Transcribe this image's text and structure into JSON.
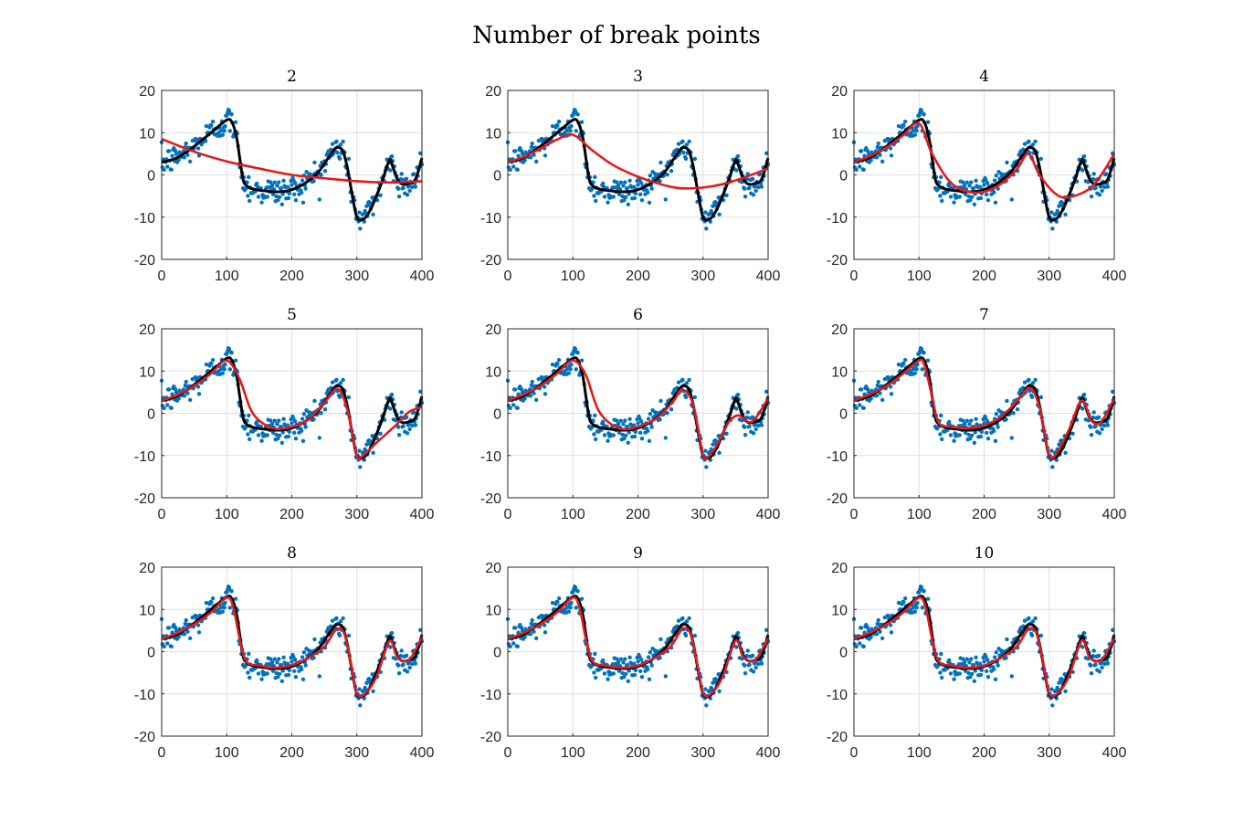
{
  "figure": {
    "title": "Number of break points"
  },
  "chart_data": {
    "type": "scatter",
    "layout": "3x3 small multiples",
    "xlim": [
      0,
      400
    ],
    "ylim": [
      -20,
      20
    ],
    "xticks": [
      0,
      100,
      200,
      300,
      400
    ],
    "yticks": [
      -20,
      -10,
      0,
      10,
      20
    ],
    "grid": true,
    "colors": {
      "points": "#0072BD",
      "true_curve": "#000000",
      "fitted_curve": "#E41A1C"
    },
    "true_curve": {
      "x": [
        0,
        20,
        40,
        60,
        80,
        100,
        108,
        115,
        120,
        125,
        130,
        140,
        160,
        180,
        200,
        220,
        240,
        255,
        265,
        270,
        278,
        285,
        292,
        300,
        310,
        320,
        330,
        340,
        350,
        355,
        362,
        370,
        380,
        390,
        400
      ],
      "y": [
        3,
        3.8,
        5.6,
        8,
        10.5,
        13,
        12.5,
        9,
        4,
        -1,
        -2.5,
        -3.3,
        -3.8,
        -4,
        -3.5,
        -2,
        0.5,
        3.8,
        6,
        6.5,
        5.8,
        2,
        -4,
        -10,
        -10.5,
        -8.5,
        -5,
        -1,
        3.5,
        2,
        -1,
        -2.2,
        -2,
        -1,
        4
      ]
    },
    "panels": [
      {
        "title": "2",
        "fit": {
          "x": [
            0,
            50,
            100,
            150,
            200,
            250,
            300,
            350,
            400
          ],
          "y": [
            8.5,
            5.5,
            3.2,
            1.5,
            0,
            -0.8,
            -1.5,
            -1.8,
            -1.5
          ]
        }
      },
      {
        "title": "3",
        "fit": {
          "x": [
            0,
            25,
            50,
            75,
            100,
            130,
            160,
            190,
            220,
            250,
            270,
            300,
            330,
            360,
            400
          ],
          "y": [
            3,
            4.3,
            6.2,
            8.3,
            9.5,
            5.8,
            2.5,
            0.2,
            -1.5,
            -2.8,
            -3.2,
            -3,
            -2.2,
            -0.8,
            1.5
          ]
        }
      },
      {
        "title": "4",
        "fit": {
          "x": [
            0,
            25,
            50,
            75,
            100,
            120,
            150,
            185,
            220,
            250,
            268,
            285,
            310,
            330,
            360,
            380,
            400
          ],
          "y": [
            3,
            4.5,
            6.5,
            9.3,
            12.2,
            5,
            -2,
            -4.2,
            -2.7,
            1.3,
            5,
            0,
            -4.5,
            -5.3,
            -3.5,
            0,
            5
          ]
        }
      },
      {
        "title": "5",
        "fit": {
          "x": [
            0,
            25,
            50,
            75,
            100,
            120,
            140,
            170,
            200,
            225,
            250,
            270,
            285,
            300,
            308,
            330,
            360,
            380,
            400
          ],
          "y": [
            3,
            4.4,
            6.5,
            9.3,
            12.5,
            8,
            0,
            -3.5,
            -3.2,
            -1.5,
            2.5,
            5.8,
            1,
            -10,
            -10.2,
            -7,
            -2.8,
            0.3,
            1.5
          ]
        }
      },
      {
        "title": "6",
        "fit": {
          "x": [
            0,
            25,
            50,
            75,
            100,
            120,
            140,
            170,
            200,
            230,
            255,
            268,
            285,
            300,
            310,
            325,
            340,
            355,
            375,
            400
          ],
          "y": [
            3,
            4.5,
            6.5,
            9.3,
            12.5,
            9,
            0.5,
            -3.5,
            -3.2,
            -1,
            3,
            5.6,
            2,
            -9.8,
            -10,
            -6.5,
            -2,
            -0.5,
            -2,
            3.5
          ]
        }
      },
      {
        "title": "7",
        "fit": {
          "x": [
            0,
            25,
            50,
            75,
            100,
            108,
            120,
            130,
            150,
            175,
            200,
            225,
            250,
            270,
            285,
            300,
            312,
            330,
            350,
            365,
            380,
            400
          ],
          "y": [
            3,
            4.5,
            6.5,
            9.3,
            12.5,
            11.5,
            4,
            -2.2,
            -3.2,
            -3.5,
            -2.8,
            -1,
            2.8,
            6,
            1.5,
            -9.8,
            -9.3,
            -4,
            3,
            -1.8,
            -2,
            3.5
          ]
        }
      },
      {
        "title": "8",
        "fit": {
          "x": [
            0,
            25,
            50,
            75,
            100,
            110,
            120,
            130,
            150,
            175,
            200,
            225,
            250,
            268,
            280,
            290,
            300,
            312,
            330,
            350,
            362,
            380,
            400
          ],
          "y": [
            3,
            4.5,
            6.5,
            9.2,
            12.8,
            10.5,
            3,
            -2.3,
            -3.3,
            -3.8,
            -3.2,
            -1.5,
            1.2,
            5.2,
            4.5,
            -2,
            -9.8,
            -10,
            -6,
            2.5,
            -1.2,
            -2,
            3.5
          ]
        }
      },
      {
        "title": "9",
        "fit": {
          "x": [
            0,
            25,
            50,
            75,
            100,
            110,
            120,
            130,
            150,
            175,
            200,
            225,
            250,
            268,
            280,
            290,
            300,
            312,
            330,
            350,
            362,
            380,
            400
          ],
          "y": [
            3,
            4.5,
            6.5,
            9.2,
            12.8,
            10.5,
            3,
            -2.3,
            -3.3,
            -3.8,
            -3.3,
            -1.5,
            1.2,
            5.3,
            4.5,
            -2,
            -9.8,
            -10,
            -6,
            2.6,
            -1.3,
            -2,
            3.2
          ]
        }
      },
      {
        "title": "10",
        "fit": {
          "x": [
            0,
            25,
            50,
            75,
            100,
            110,
            120,
            130,
            150,
            175,
            200,
            225,
            250,
            268,
            280,
            290,
            300,
            312,
            330,
            350,
            362,
            380,
            400
          ],
          "y": [
            3,
            4.5,
            6.5,
            9.2,
            12.8,
            10.5,
            3,
            -2.3,
            -3.3,
            -3.8,
            -3.3,
            -1.5,
            1.2,
            5.3,
            4.5,
            -2,
            -9.8,
            -10,
            -6,
            2.6,
            -1.3,
            -2,
            3.2
          ]
        }
      }
    ]
  }
}
